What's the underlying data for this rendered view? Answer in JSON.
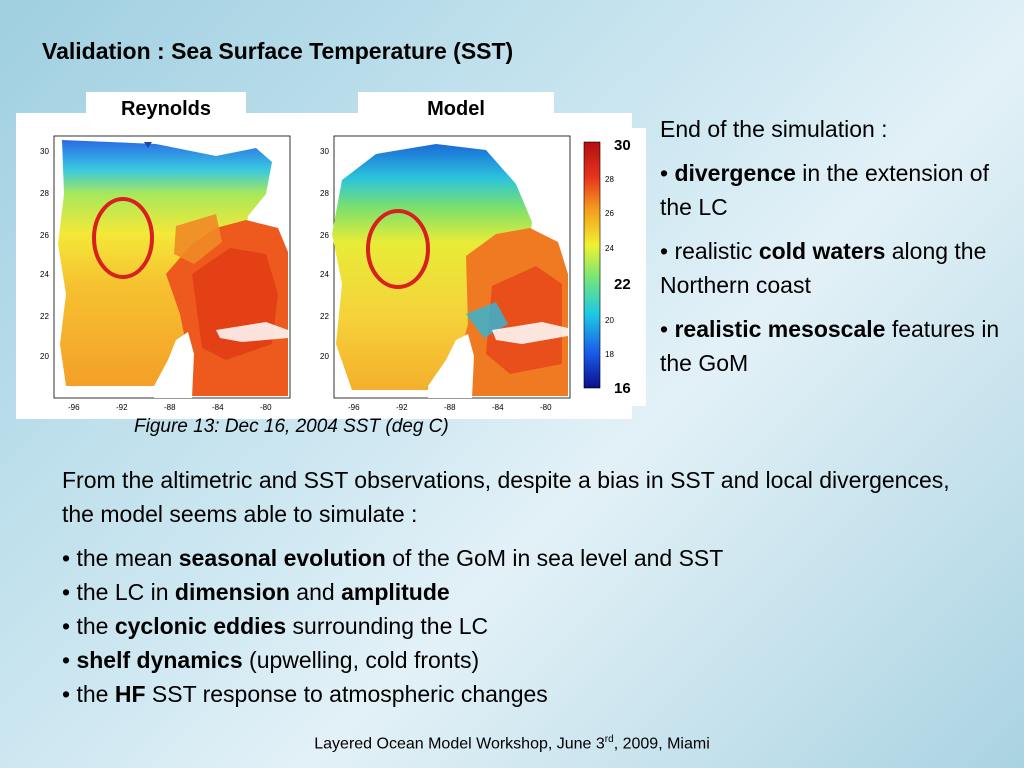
{
  "title": "Validation : Sea Surface Temperature (SST)",
  "maps": {
    "left_label": "Reynolds",
    "right_label": "Model",
    "y_ticks": [
      "30",
      "28",
      "26",
      "24",
      "22",
      "20"
    ],
    "x_ticks": [
      "-96",
      "-92",
      "-88",
      "-84",
      "-80"
    ],
    "caption": "Figure 13: Dec 16, 2004 SST (deg C)"
  },
  "colorbar": {
    "small_ticks": [
      "28",
      "26",
      "24",
      "20",
      "18"
    ],
    "label_top": "30",
    "label_mid": "22",
    "label_bottom": "16",
    "colors": [
      "#0a0f8c",
      "#1a5ae6",
      "#1ec8e6",
      "#78e678",
      "#f0f032",
      "#f5a01e",
      "#e6321e",
      "#b40f0f"
    ]
  },
  "right": {
    "heading": "End of the simulation :",
    "b1_bold": "divergence",
    "b1_rest": " in the extension of the LC",
    "b2_pre": "realistic ",
    "b2_bold": "cold waters",
    "b2_rest": " along the Northern coast",
    "b3_bold": "realistic mesoscale",
    "b3_rest": " features in the GoM"
  },
  "main": {
    "intro": "From the altimetric and SST observations, despite a bias in SST and local divergences, the model seems able to simulate :",
    "i1_pre": "the mean ",
    "i1_bold": "seasonal evolution",
    "i1_rest": " of the GoM in sea level and SST",
    "i2_pre": "the LC in ",
    "i2_bold1": "dimension",
    "i2_mid": " and ",
    "i2_bold2": "amplitude",
    "i3_pre": "the ",
    "i3_bold": "cyclonic eddies",
    "i3_rest": " surrounding the LC",
    "i4_bold": "shelf dynamics",
    "i4_rest": " (upwelling, cold fronts)",
    "i5_pre": "the ",
    "i5_bold": "HF",
    "i5_rest": " SST response to atmospheric changes"
  },
  "footer": {
    "pre": "Layered Ocean Model Workshop, June 3",
    "sup": "rd",
    "post": ", 2009, Miami"
  }
}
